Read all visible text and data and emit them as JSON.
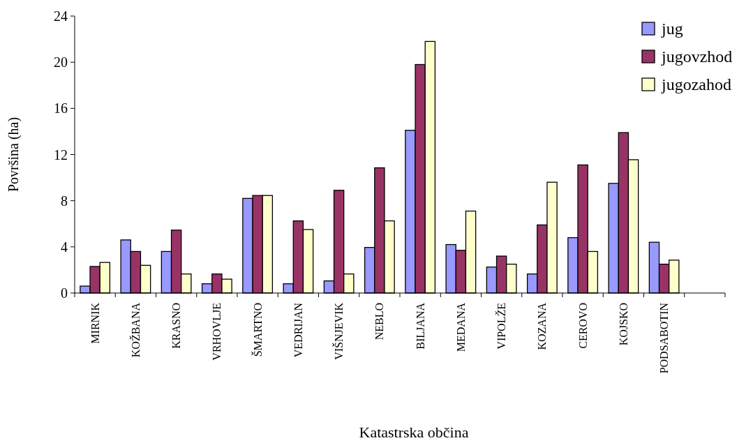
{
  "chart_data": {
    "type": "bar",
    "xlabel": "Katastrska občina",
    "ylabel": "Površina (ha)",
    "categories": [
      "MIRNIK",
      "KOŽBANA",
      "KRASNO",
      "VRHOVLJE",
      "ŠMARTNO",
      "VEDRIJAN",
      "VIŠNJEVIK",
      "NEBLO",
      "BILJANA",
      "MEDANA",
      "VIPOLŽE",
      "KOZANA",
      "CEROVO",
      "KOJSKO",
      "PODSABOTIN",
      null
    ],
    "series": [
      {
        "name": "jug",
        "color": "#9999ff",
        "values": [
          0.6,
          4.6,
          3.6,
          0.8,
          8.2,
          0.8,
          1.05,
          3.95,
          14.1,
          4.2,
          2.25,
          1.65,
          4.8,
          9.5,
          4.4,
          null
        ]
      },
      {
        "name": "jugovzhod",
        "color": "#993366",
        "values": [
          2.3,
          3.6,
          5.45,
          1.65,
          8.45,
          6.25,
          8.9,
          10.85,
          19.8,
          3.7,
          3.2,
          5.9,
          11.1,
          13.9,
          2.5,
          null
        ]
      },
      {
        "name": "jugozahod",
        "color": "#ffffcc",
        "values": [
          2.65,
          2.4,
          1.65,
          1.2,
          8.45,
          5.5,
          1.65,
          6.25,
          21.8,
          7.1,
          2.5,
          9.6,
          3.6,
          11.55,
          2.85,
          null
        ]
      }
    ],
    "ylim": [
      0,
      24
    ],
    "yticks": [
      0,
      4,
      8,
      12,
      16,
      20,
      24
    ],
    "grid": false,
    "legend": "top right"
  }
}
